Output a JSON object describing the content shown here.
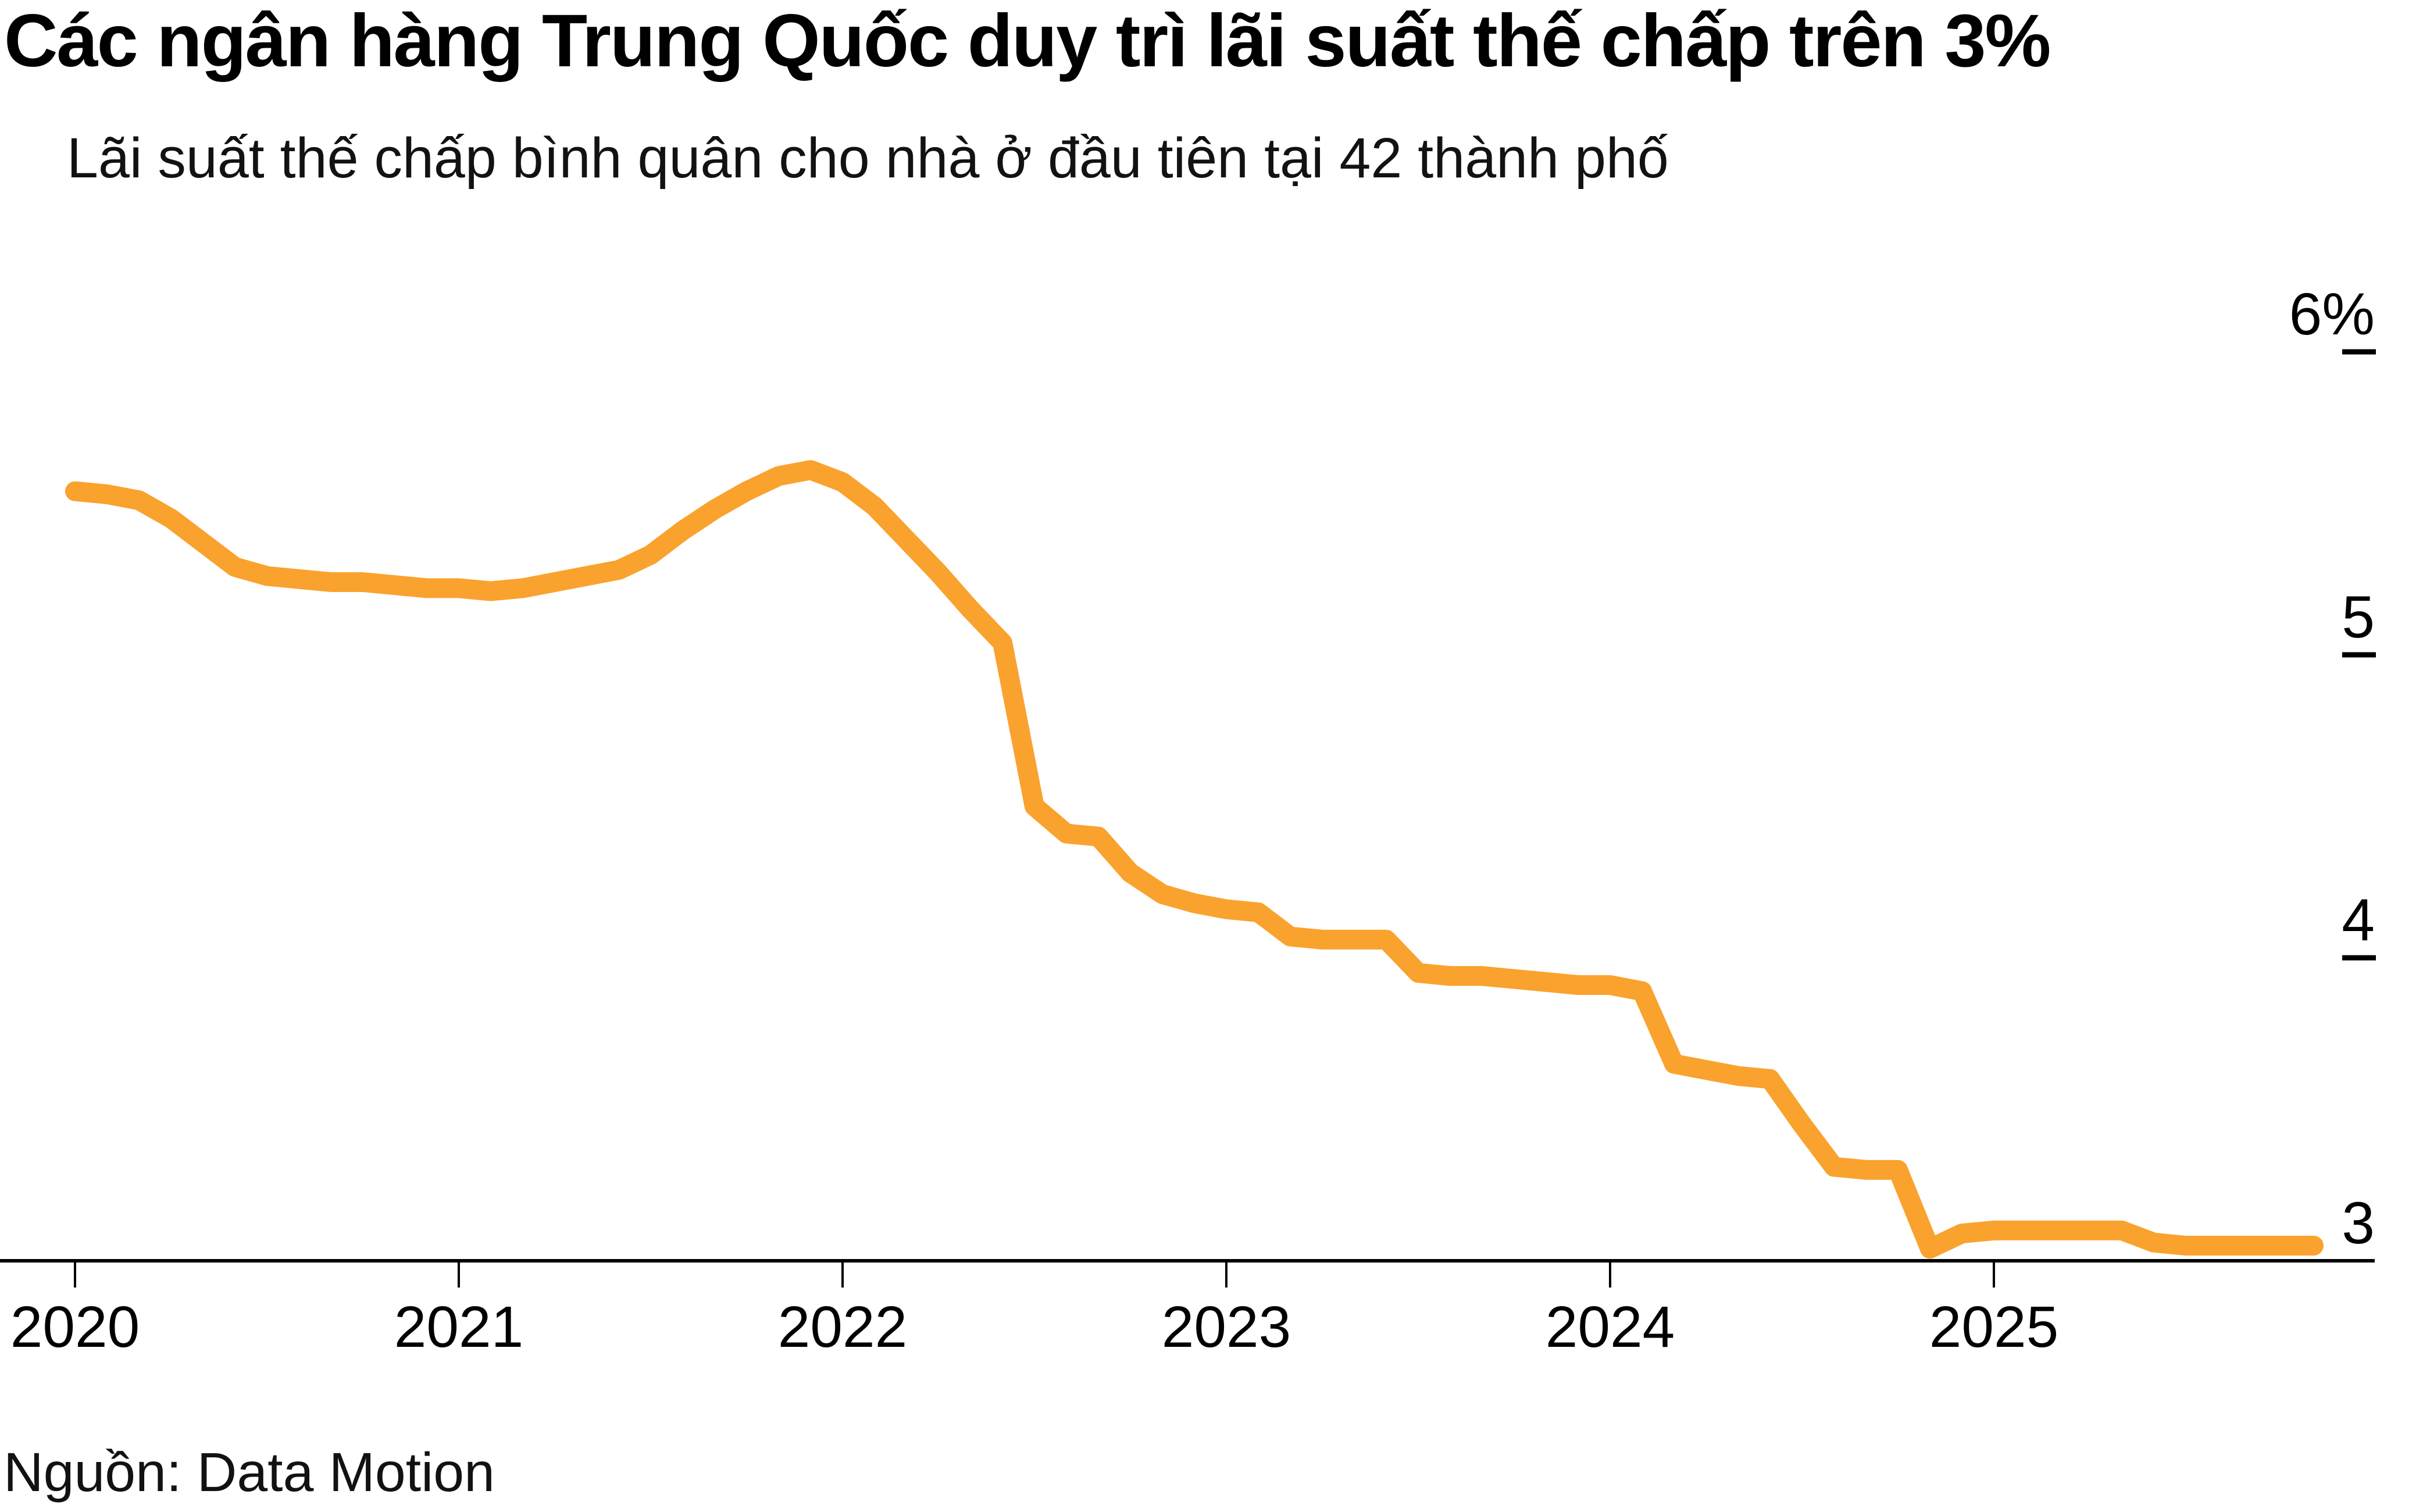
{
  "header": {
    "title": "Các ngân hàng Trung Quốc duy trì lãi suất thế chấp trên 3%",
    "subtitle": "Lãi suất thế chấp bình quân cho nhà ở đầu tiên tại 42 thành phố"
  },
  "footer": {
    "source": "Nguồn: Data Motion"
  },
  "chart_data": {
    "type": "line",
    "title": "Các ngân hàng Trung Quốc duy trì lãi suất thế chấp trên 3%",
    "subtitle": "Lãi suất thế chấp bình quân cho nhà ở đầu tiên tại 42 thành phố",
    "source": "Nguồn: Data Motion",
    "line_color": "#FAA22E",
    "axis_color": "#000000",
    "grid": false,
    "legend": "none",
    "x_tick_labels": [
      "2020",
      "2021",
      "2022",
      "2023",
      "2024",
      "2025"
    ],
    "y_tick_labels": [
      "6%",
      "5",
      "4",
      "3"
    ],
    "y_tick_values": [
      6,
      5,
      4,
      3
    ],
    "ylim": [
      3,
      6
    ],
    "xlim_years": [
      2020.0,
      2025.92
    ],
    "series": [
      {
        "name": "Lãi suất thế chấp bình quân cho nhà ở đầu tiên (42 thành phố), %",
        "x_start_year": 2020.0,
        "x_step_months": 1,
        "values": [
          5.54,
          5.53,
          5.51,
          5.45,
          5.37,
          5.29,
          5.26,
          5.25,
          5.24,
          5.24,
          5.23,
          5.22,
          5.22,
          5.21,
          5.22,
          5.24,
          5.26,
          5.28,
          5.33,
          5.41,
          5.48,
          5.54,
          5.59,
          5.61,
          5.57,
          5.49,
          5.38,
          5.27,
          5.15,
          5.04,
          4.5,
          4.41,
          4.4,
          4.28,
          4.21,
          4.18,
          4.16,
          4.15,
          4.07,
          4.06,
          4.06,
          4.06,
          3.95,
          3.94,
          3.94,
          3.93,
          3.92,
          3.91,
          3.91,
          3.89,
          3.65,
          3.63,
          3.61,
          3.6,
          3.45,
          3.31,
          3.3,
          3.3,
          3.04,
          3.09,
          3.1,
          3.1,
          3.1,
          3.1,
          3.1,
          3.06,
          3.05,
          3.05,
          3.05,
          3.05,
          3.05
        ]
      }
    ]
  }
}
